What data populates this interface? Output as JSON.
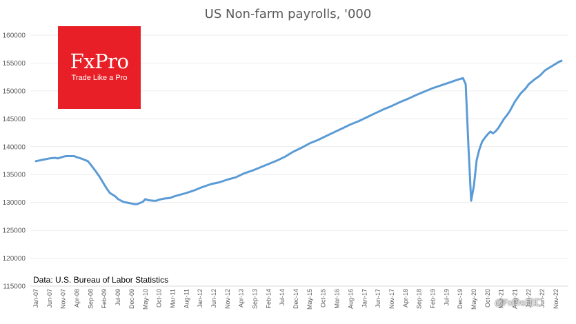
{
  "chart_data": {
    "type": "line",
    "title": "US Non-farm payrolls, '000",
    "ylim": [
      115000,
      160000
    ],
    "yticks": [
      115000,
      120000,
      125000,
      130000,
      135000,
      140000,
      145000,
      150000,
      155000,
      160000
    ],
    "xticks": [
      "Jan-07",
      "Jun-07",
      "Nov-07",
      "Apr-08",
      "Sep-08",
      "Feb-09",
      "Jul-09",
      "Dec-09",
      "May-10",
      "Oct-10",
      "Mar-11",
      "Aug-11",
      "Jan-12",
      "Jun-12",
      "Nov-12",
      "Apr-13",
      "Sep-13",
      "Feb-14",
      "Jul-14",
      "Dec-14",
      "May-15",
      "Oct-15",
      "Mar-16",
      "Aug-16",
      "Jan-17",
      "Jun-17",
      "Nov-17",
      "Apr-18",
      "Sep-18",
      "Feb-19",
      "Jul-19",
      "Dec-19",
      "May-20",
      "Oct-20",
      "Mar-21",
      "Aug-21",
      "Jan-22",
      "Jun-22",
      "Nov-22"
    ],
    "grid": true,
    "series": [
      {
        "color": "#5b9bd5",
        "points": [
          [
            "Jan-07",
            137400
          ],
          [
            "Apr-07",
            137700
          ],
          [
            "Jun-07",
            137900
          ],
          [
            "Aug-07",
            138000
          ],
          [
            "Sep-07",
            137900
          ],
          [
            "Nov-07",
            138200
          ],
          [
            "Dec-07",
            138300
          ],
          [
            "Mar-08",
            138300
          ],
          [
            "Apr-08",
            138100
          ],
          [
            "Jun-08",
            137800
          ],
          [
            "Aug-08",
            137400
          ],
          [
            "Sep-08",
            136800
          ],
          [
            "Nov-08",
            135500
          ],
          [
            "Dec-08",
            134800
          ],
          [
            "Jan-09",
            134000
          ],
          [
            "Feb-09",
            133200
          ],
          [
            "Mar-09",
            132400
          ],
          [
            "Apr-09",
            131700
          ],
          [
            "Jun-09",
            131100
          ],
          [
            "Jul-09",
            130600
          ],
          [
            "Sep-09",
            130100
          ],
          [
            "Nov-09",
            129900
          ],
          [
            "Dec-09",
            129800
          ],
          [
            "Jan-10",
            129700
          ],
          [
            "Feb-10",
            129700
          ],
          [
            "Mar-10",
            129900
          ],
          [
            "Apr-10",
            130100
          ],
          [
            "May-10",
            130600
          ],
          [
            "Jun-10",
            130400
          ],
          [
            "Aug-10",
            130300
          ],
          [
            "Sep-10",
            130300
          ],
          [
            "Oct-10",
            130500
          ],
          [
            "Dec-10",
            130700
          ],
          [
            "Feb-11",
            130800
          ],
          [
            "Mar-11",
            131000
          ],
          [
            "May-11",
            131300
          ],
          [
            "Aug-11",
            131700
          ],
          [
            "Nov-11",
            132200
          ],
          [
            "Jan-12",
            132600
          ],
          [
            "May-12",
            133300
          ],
          [
            "Aug-12",
            133600
          ],
          [
            "Nov-12",
            134100
          ],
          [
            "Feb-13",
            134500
          ],
          [
            "May-13",
            135200
          ],
          [
            "Aug-13",
            135700
          ],
          [
            "Nov-13",
            136300
          ],
          [
            "Feb-14",
            136900
          ],
          [
            "May-14",
            137500
          ],
          [
            "Aug-14",
            138200
          ],
          [
            "Nov-14",
            139100
          ],
          [
            "Feb-15",
            139800
          ],
          [
            "May-15",
            140600
          ],
          [
            "Aug-15",
            141200
          ],
          [
            "Nov-15",
            141900
          ],
          [
            "Feb-16",
            142600
          ],
          [
            "May-16",
            143300
          ],
          [
            "Aug-16",
            144000
          ],
          [
            "Nov-16",
            144600
          ],
          [
            "Feb-17",
            145300
          ],
          [
            "May-17",
            146000
          ],
          [
            "Aug-17",
            146700
          ],
          [
            "Nov-17",
            147300
          ],
          [
            "Feb-18",
            148000
          ],
          [
            "May-18",
            148600
          ],
          [
            "Aug-18",
            149300
          ],
          [
            "Nov-18",
            149900
          ],
          [
            "Feb-19",
            150500
          ],
          [
            "May-19",
            151000
          ],
          [
            "Aug-19",
            151500
          ],
          [
            "Nov-19",
            152000
          ],
          [
            "Jan-20",
            152300
          ],
          [
            "Feb-20",
            151200
          ],
          [
            "Mar-20",
            140000
          ],
          [
            "Apr-20",
            130300
          ],
          [
            "May-20",
            133000
          ],
          [
            "Jun-20",
            137600
          ],
          [
            "Jul-20",
            139500
          ],
          [
            "Aug-20",
            140900
          ],
          [
            "Sep-20",
            141600
          ],
          [
            "Oct-20",
            142200
          ],
          [
            "Nov-20",
            142700
          ],
          [
            "Dec-20",
            142400
          ],
          [
            "Jan-21",
            142800
          ],
          [
            "Feb-21",
            143400
          ],
          [
            "Mar-21",
            144200
          ],
          [
            "Apr-21",
            145000
          ],
          [
            "May-21",
            145600
          ],
          [
            "Jun-21",
            146300
          ],
          [
            "Jul-21",
            147200
          ],
          [
            "Aug-21",
            148100
          ],
          [
            "Sep-21",
            148800
          ],
          [
            "Oct-21",
            149500
          ],
          [
            "Nov-21",
            150000
          ],
          [
            "Dec-21",
            150500
          ],
          [
            "Jan-22",
            151200
          ],
          [
            "Mar-22",
            152000
          ],
          [
            "May-22",
            152700
          ],
          [
            "Jul-22",
            153700
          ],
          [
            "Sep-22",
            154300
          ],
          [
            "Nov-22",
            154900
          ],
          [
            "Dec-22",
            155200
          ],
          [
            "Jan-23",
            155400
          ]
        ]
      }
    ]
  },
  "logo": {
    "name": "FxPro",
    "tagline": "Trade Like a Pro"
  },
  "source_note": "Data: U.S. Bureau of Labor Statistics",
  "watermark": "@FxPro浦汇"
}
